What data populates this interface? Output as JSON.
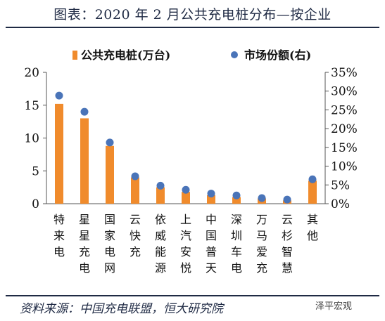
{
  "header": {
    "title": "图表：2020 年 2 月公共充电桩分布—按企业"
  },
  "footer": {
    "source": "资料来源：中国充电联盟，恒大研究院",
    "watermark": "泽平宏观"
  },
  "colors": {
    "bar": "#f08b2c",
    "dot": "#4a74b8",
    "text": "#1f2a44"
  },
  "chart_data": {
    "type": "bar",
    "categories": [
      "特来电",
      "星星充电",
      "国家电网",
      "云快充",
      "依威能源",
      "上汽安悦",
      "中国普天",
      "深圳车电",
      "万马爱充",
      "云杉智慧",
      "其他"
    ],
    "series": [
      {
        "name": "公共充电桩(万台)",
        "type": "bar",
        "axis": "left",
        "values": [
          15.2,
          13.0,
          8.8,
          4.0,
          2.5,
          1.8,
          1.3,
          1.0,
          0.8,
          0.5,
          3.5
        ]
      },
      {
        "name": "市场份额(右)",
        "type": "scatter",
        "axis": "right",
        "values": [
          28.8,
          24.5,
          16.3,
          7.3,
          4.8,
          3.7,
          2.7,
          2.2,
          1.5,
          1.1,
          6.5
        ]
      }
    ],
    "y_left": {
      "range": [
        0,
        20
      ],
      "ticks": [
        "0",
        "5",
        "10",
        "15",
        "20"
      ]
    },
    "y_right": {
      "range": [
        0,
        35
      ],
      "ticks": [
        "0%",
        "5%",
        "10%",
        "15%",
        "20%",
        "25%",
        "30%",
        "35%"
      ]
    },
    "legend": {
      "position": "top"
    },
    "grid": false
  }
}
